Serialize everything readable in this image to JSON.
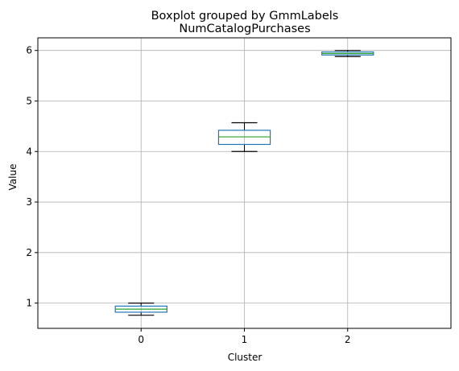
{
  "chart_data": {
    "type": "box",
    "suptitle": "Boxplot grouped by GmmLabels",
    "title": "NumCatalogPurchases",
    "xlabel": "Cluster",
    "ylabel": "Value",
    "categories": [
      "0",
      "1",
      "2"
    ],
    "ylim": [
      0.5,
      6.25
    ],
    "yticks": [
      1,
      2,
      3,
      4,
      5,
      6
    ],
    "grid": true,
    "boxes": [
      {
        "category": "0",
        "whislo": 0.76,
        "q1": 0.82,
        "median": 0.88,
        "q3": 0.94,
        "whishi": 1.0
      },
      {
        "category": "1",
        "whislo": 4.0,
        "q1": 4.14,
        "median": 4.29,
        "q3": 4.42,
        "whishi": 4.57
      },
      {
        "category": "2",
        "whislo": 5.88,
        "q1": 5.91,
        "median": 5.94,
        "q3": 5.97,
        "whishi": 6.0
      }
    ],
    "colors": {
      "box": "#1f77b4",
      "median": "#2ca02c",
      "whisker": "#000000",
      "grid": "#b0b0b0",
      "axes": "#000000"
    }
  }
}
